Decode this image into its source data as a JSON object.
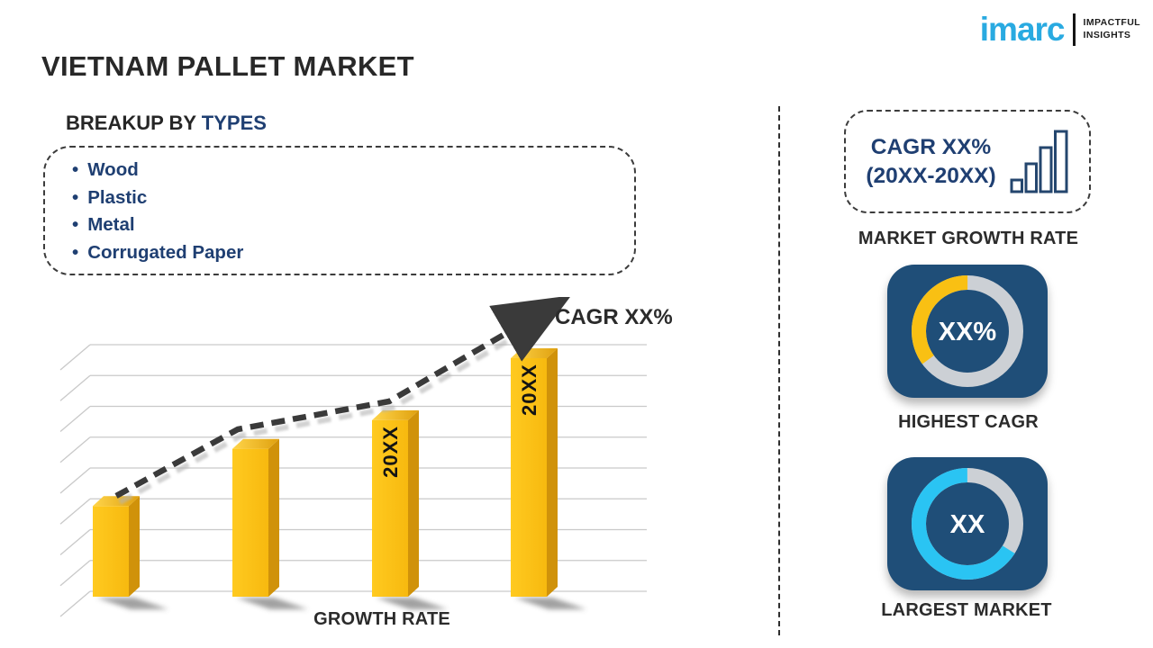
{
  "page": {
    "title": "VIETNAM PALLET MARKET"
  },
  "brand": {
    "name": "imarc",
    "tagline_line1": "IMPACTFUL",
    "tagline_line2": "INSIGHTS"
  },
  "breakup": {
    "heading_prefix": "BREAKUP BY",
    "heading_accent": "TYPES",
    "items": [
      "Wood",
      "Plastic",
      "Metal",
      "Corrugated Paper"
    ]
  },
  "chart_data": [
    {
      "id": "growth-bar-chart",
      "type": "bar",
      "title": "",
      "xlabel": "GROWTH RATE",
      "ylabel": "",
      "categories": [
        "",
        "",
        "20XX",
        "20XX"
      ],
      "values_relative": [
        38,
        62,
        74,
        100
      ],
      "value_note": "axis unlabeled placeholder infographic; values are relative bar heights (max=100)",
      "grid": true,
      "bar_style": "3d-yellow",
      "trend_line": {
        "style": "dashed-arrow",
        "label": "CAGR XX%"
      }
    },
    {
      "id": "highest-cagr-donut",
      "type": "pie",
      "donut": true,
      "center_label": "XX%",
      "caption": "HIGHEST CAGR",
      "slices": [
        {
          "name": "highlight",
          "pct": 35,
          "color": "#f9c013",
          "start_deg_from_top": 234
        },
        {
          "name": "remainder",
          "pct": 65,
          "color": "#ccd0d5"
        }
      ]
    },
    {
      "id": "largest-market-donut",
      "type": "pie",
      "donut": true,
      "center_label": "XX",
      "caption": "LARGEST MARKET",
      "slices": [
        {
          "name": "highlight",
          "pct": 66,
          "color": "#2ac4f3",
          "start_deg_from_top": 122
        },
        {
          "name": "remainder",
          "pct": 34,
          "color": "#ccd0d5"
        }
      ]
    }
  ],
  "right_panel": {
    "cagr_box": {
      "line1": "CAGR XX%",
      "line2": "(20XX-20XX)"
    },
    "market_growth_rate_label": "MARKET GROWTH RATE"
  },
  "colors": {
    "brand_cyan": "#29aae1",
    "navy": "#1f3f72",
    "dark_text": "#2b2b2b",
    "card_blue": "#1f4e78",
    "ring_gray": "#ccd0d5",
    "accent_yellow": "#f9c013",
    "accent_cyan": "#2ac4f3",
    "bar_yellow": "#fcbf13",
    "bar_side": "#d0920a",
    "grid_gray": "#c9c9c9",
    "trend_dark": "#3a3a3a"
  }
}
